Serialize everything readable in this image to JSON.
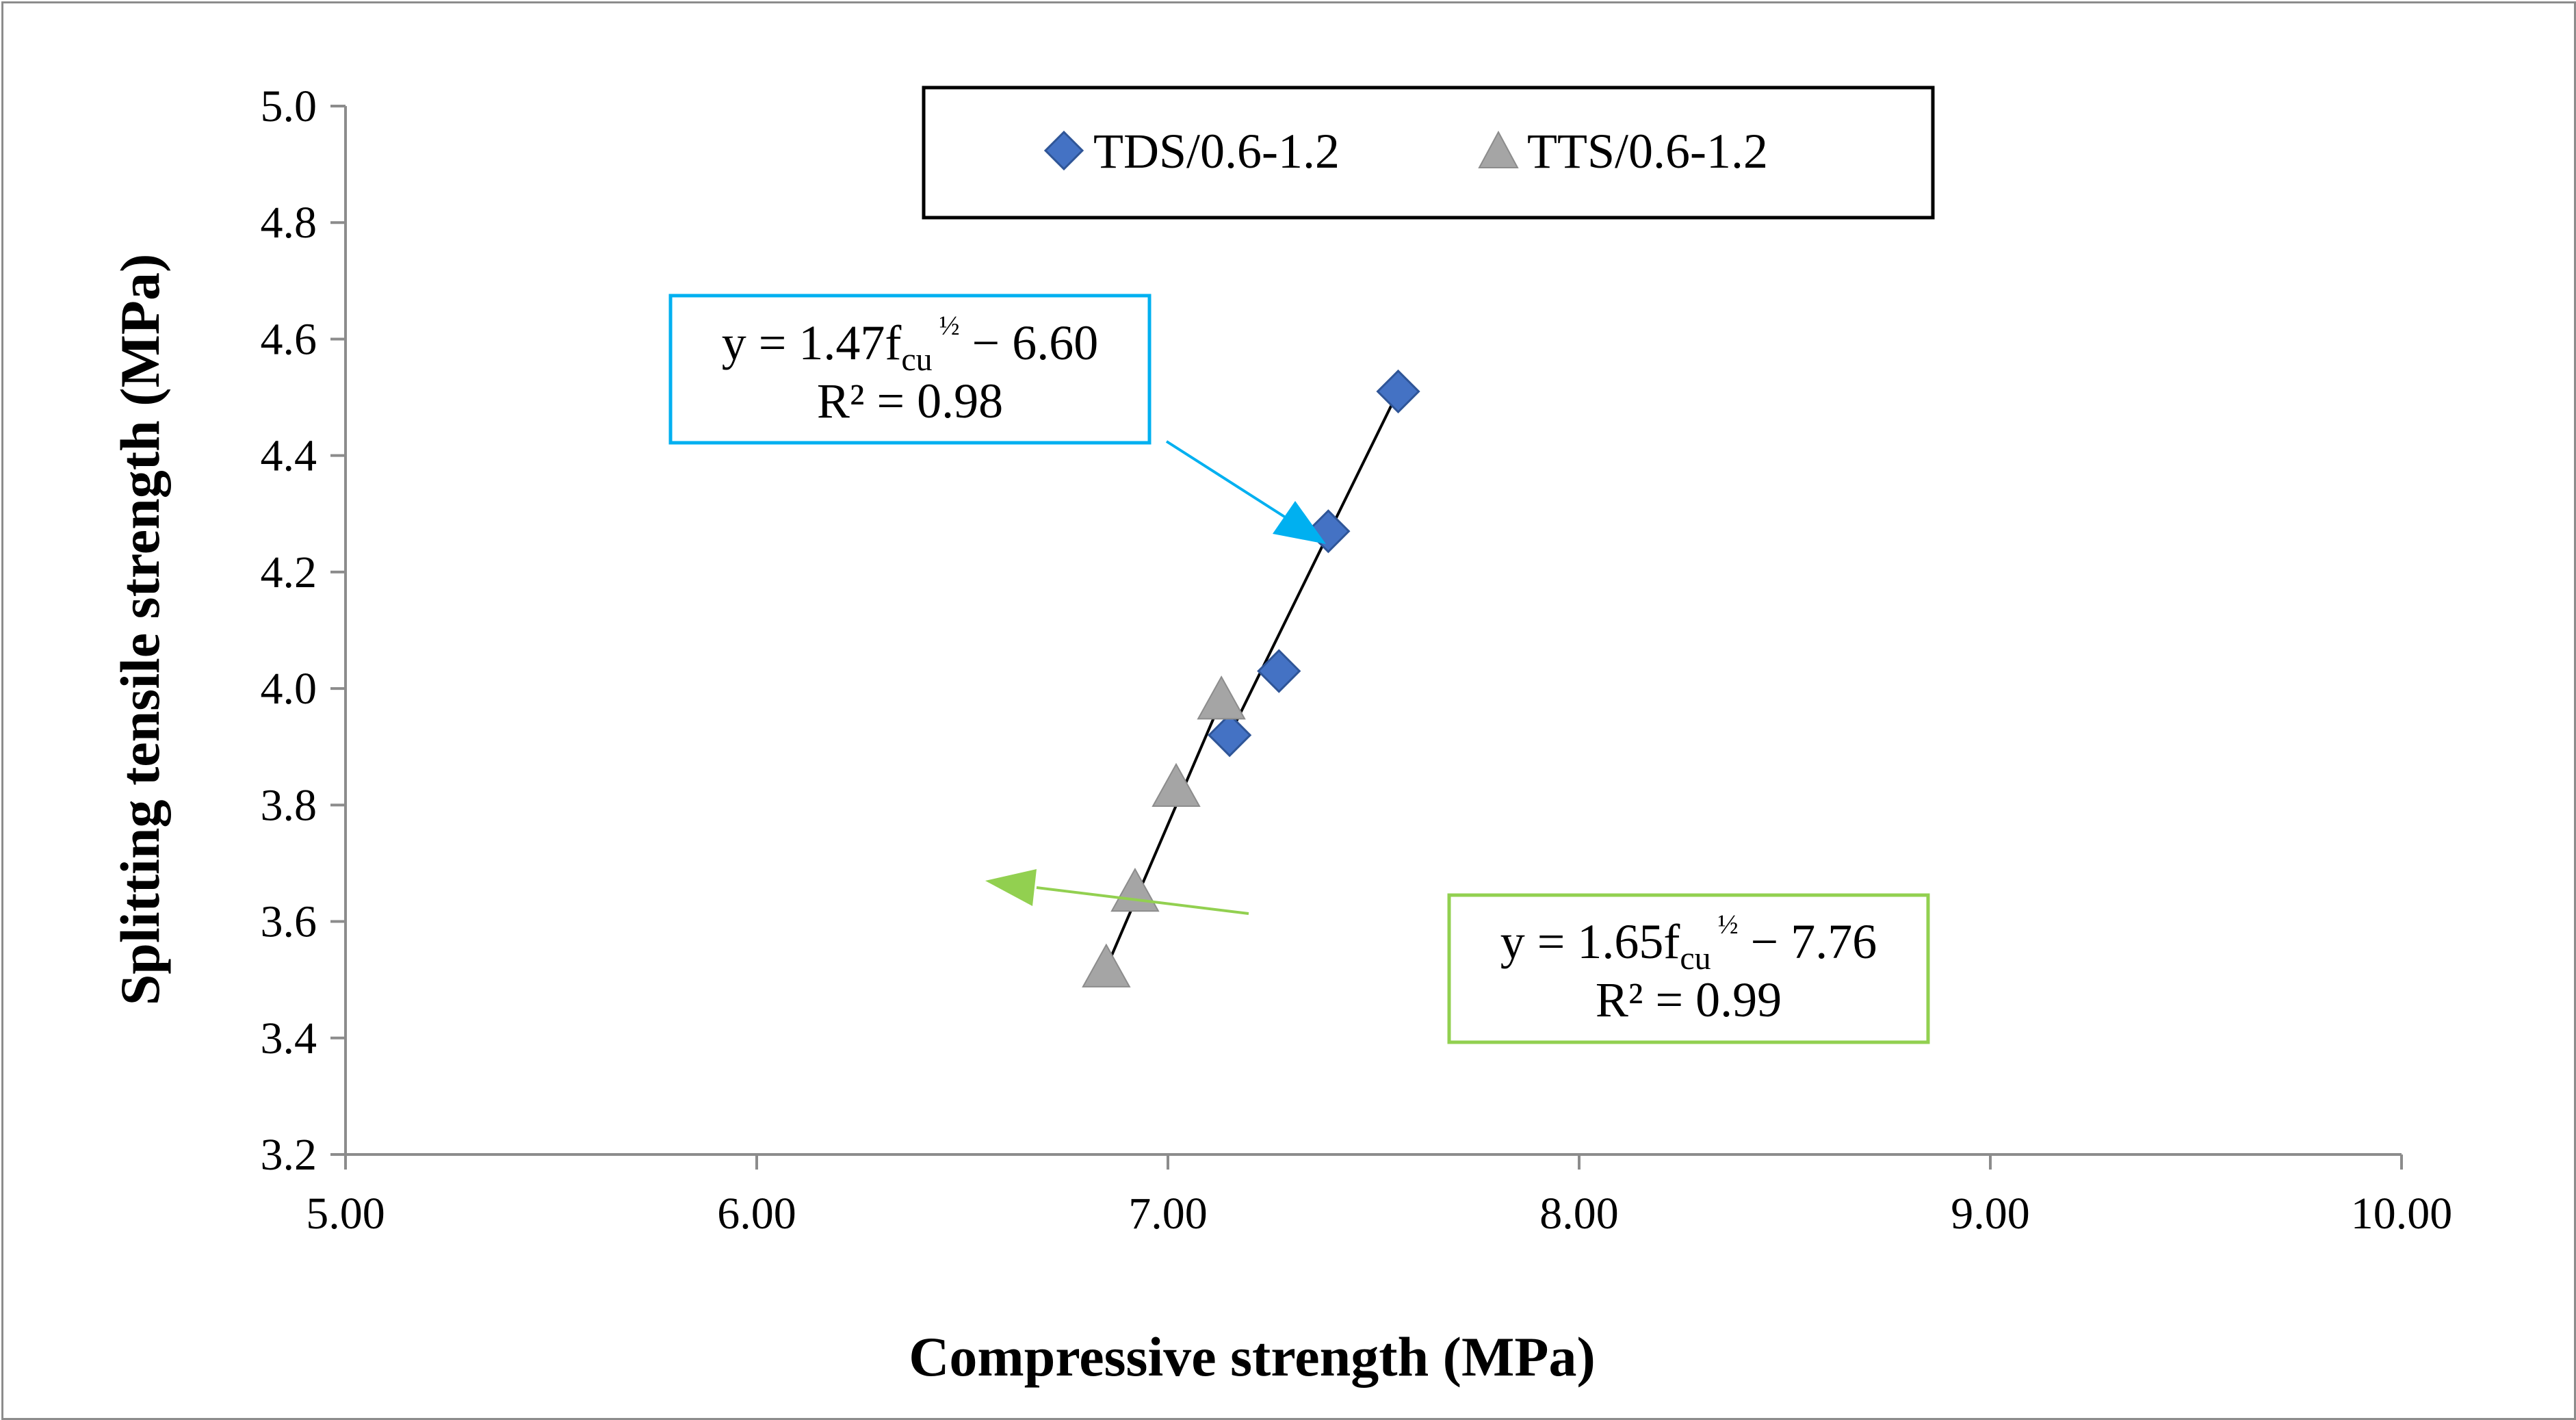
{
  "chart_data": {
    "type": "scatter",
    "title": "",
    "xlabel": "Compressive strength (MPa)",
    "ylabel": "Splitting tensile strength (MPa)",
    "xlim": [
      5.0,
      10.0
    ],
    "ylim": [
      3.2,
      5.0
    ],
    "x_ticks": [
      "5.00",
      "6.00",
      "7.00",
      "8.00",
      "9.00",
      "10.00"
    ],
    "y_ticks": [
      "3.2",
      "3.4",
      "3.6",
      "3.8",
      "4.0",
      "4.2",
      "4.4",
      "4.6",
      "4.8",
      "5.0"
    ],
    "grid": false,
    "legend_position": "top-center",
    "series": [
      {
        "name": "TDS/0.6-1.2",
        "marker": "diamond",
        "color": "#4472C4",
        "points": [
          {
            "x": 7.15,
            "y": 3.92
          },
          {
            "x": 7.27,
            "y": 4.03
          },
          {
            "x": 7.39,
            "y": 4.27
          },
          {
            "x": 7.56,
            "y": 4.51
          }
        ],
        "trendline": {
          "x0": 7.15,
          "x1": 7.56,
          "equation_main": "y = 1.47f",
          "equation_sub": "cu",
          "equation_sup": "½",
          "equation_tail": " − 6.60",
          "r2": "R² = 0.98",
          "box_color": "#00B0F0"
        }
      },
      {
        "name": "TTS/0.6-1.2",
        "marker": "triangle",
        "color": "#A5A5A5",
        "points": [
          {
            "x": 6.85,
            "y": 3.52
          },
          {
            "x": 6.92,
            "y": 3.65
          },
          {
            "x": 7.02,
            "y": 3.83
          },
          {
            "x": 7.13,
            "y": 3.98
          }
        ],
        "trendline": {
          "x0": 6.85,
          "x1": 7.13,
          "equation_main": "y = 1.65f",
          "equation_sub": "cu",
          "equation_sup": "½",
          "equation_tail": " − 7.76",
          "r2": "R² = 0.99",
          "box_color": "#92D050"
        }
      }
    ]
  }
}
